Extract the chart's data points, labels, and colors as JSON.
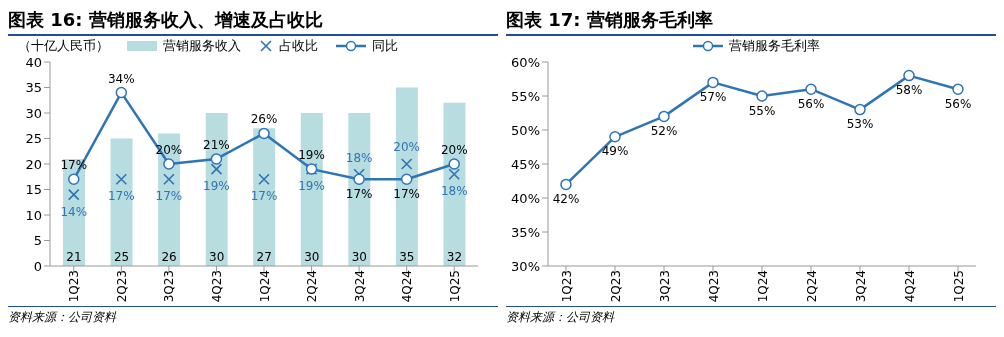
{
  "chart_data": [
    {
      "type": "bar",
      "title": "图表 16: 营销服务收入、增速及占收比",
      "ylabel": "（十亿人民币）",
      "categories": [
        "1Q23",
        "2Q23",
        "3Q23",
        "4Q23",
        "1Q24",
        "2Q24",
        "3Q24",
        "4Q24",
        "1Q25"
      ],
      "series": [
        {
          "name": "营销服务收入",
          "color": "#b7dde0",
          "values": [
            21,
            25,
            26,
            30,
            27,
            30,
            30,
            35,
            32
          ],
          "value_labels": [
            "21",
            "25",
            "26",
            "30",
            "27",
            "30",
            "30",
            "35",
            "32"
          ]
        },
        {
          "name": "占收比",
          "type": "scatter",
          "marker": "cross",
          "color": "#2e75b6",
          "values": [
            14,
            17,
            17,
            19,
            17,
            19,
            18,
            20,
            18
          ],
          "value_labels": [
            "14%",
            "17%",
            "17%",
            "19%",
            "17%",
            "19%",
            "18%",
            "20%",
            "18%"
          ]
        },
        {
          "name": "同比",
          "type": "line",
          "marker": "circle",
          "color": "#2e75b6",
          "values": [
            17,
            34,
            20,
            21,
            26,
            19,
            17,
            17,
            20
          ],
          "value_labels": [
            "17%",
            "34%",
            "20%",
            "21%",
            "26%",
            "19%",
            "17%",
            "17%",
            "20%"
          ]
        }
      ],
      "ylim": [
        0,
        40
      ],
      "yticks": [
        0,
        5,
        10,
        15,
        20,
        25,
        30,
        35,
        40
      ],
      "grid": false,
      "legend": "top",
      "annotations": [
        "资料来源：公司资料"
      ]
    },
    {
      "type": "line",
      "title": "图表 17: 营销服务毛利率",
      "categories": [
        "1Q23",
        "2Q23",
        "3Q23",
        "4Q23",
        "1Q24",
        "2Q24",
        "3Q24",
        "4Q24",
        "1Q25"
      ],
      "series": [
        {
          "name": "营销服务毛利率",
          "color": "#2e75b6",
          "marker": "circle",
          "values": [
            42,
            49,
            52,
            57,
            55,
            56,
            53,
            58,
            56
          ],
          "value_labels": [
            "42%",
            "49%",
            "52%",
            "57%",
            "55%",
            "56%",
            "53%",
            "58%",
            "56%"
          ]
        }
      ],
      "ylim": [
        30,
        60
      ],
      "yticks": [
        {
          "value": 30,
          "label": "30%"
        },
        {
          "value": 35,
          "label": "35%"
        },
        {
          "value": 40,
          "label": "40%"
        },
        {
          "value": 45,
          "label": "45%"
        },
        {
          "value": 50,
          "label": "50%"
        },
        {
          "value": 55,
          "label": "55%"
        },
        {
          "value": 60,
          "label": "60%"
        }
      ],
      "grid": false,
      "legend": "top",
      "annotations": [
        "资料来源：公司资料"
      ]
    }
  ]
}
